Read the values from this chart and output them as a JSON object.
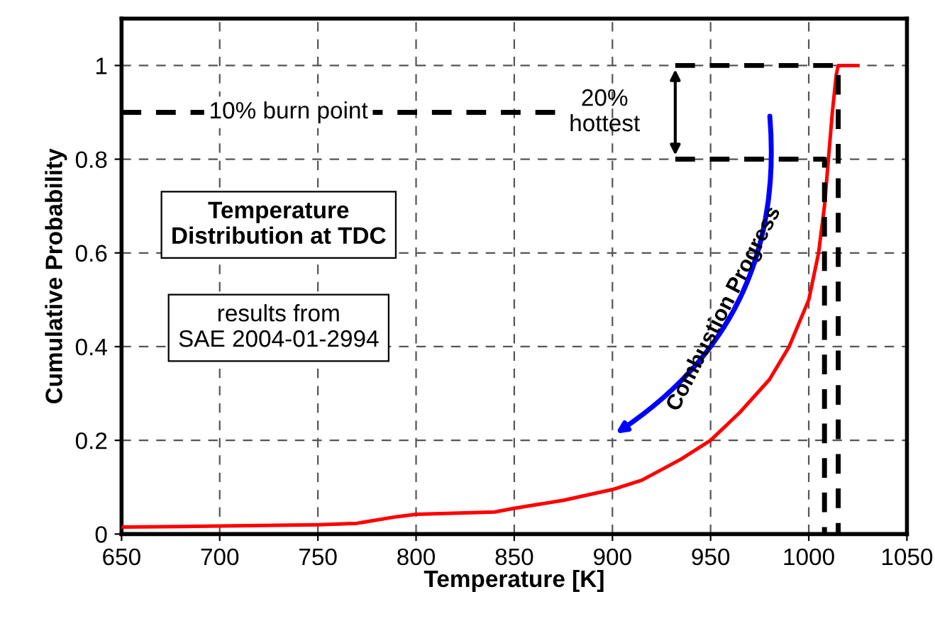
{
  "chart_data": {
    "type": "line",
    "title": "Temperature\nDistribution at TDC",
    "xlabel": "Temperature [K]",
    "ylabel": "Cumulative Probability",
    "series": [
      {
        "color": "#ff0000",
        "line_style": "solid",
        "x": [
          650,
          700,
          750,
          770,
          790,
          800,
          840,
          850,
          875,
          900,
          915,
          935,
          950,
          965,
          980,
          990,
          1000,
          1005,
          1008,
          1010,
          1012,
          1014,
          1015,
          1025
        ],
        "values": [
          0.015,
          0.017,
          0.02,
          0.023,
          0.037,
          0.042,
          0.047,
          0.055,
          0.072,
          0.095,
          0.115,
          0.16,
          0.2,
          0.26,
          0.33,
          0.4,
          0.5,
          0.6,
          0.7,
          0.8,
          0.9,
          0.98,
          1.0,
          1.0
        ]
      },
      {
        "color": "#000000",
        "line_style": "dashed",
        "x": [
          932,
          1008,
          1008
        ],
        "values": [
          0.8,
          0.8,
          0
        ]
      },
      {
        "color": "#000000",
        "line_style": "dashed",
        "x": [
          932,
          1015,
          1015
        ],
        "values": [
          1.0,
          1.0,
          0
        ]
      },
      {
        "color": "#000000",
        "line_style": "dashed",
        "x": [
          650,
          872
        ],
        "values": [
          0.9,
          0.9
        ]
      }
    ],
    "annotations": [
      {
        "text": "10% burn point",
        "x": 735,
        "y": 0.9
      },
      "20%\nhottest",
      "Combustion Progress",
      "results from\nSAE 2004-01-2994"
    ],
    "xlim": [
      650,
      1050
    ],
    "xticks": [
      650,
      700,
      750,
      800,
      850,
      900,
      950,
      1000,
      1050
    ],
    "ylim": [
      0,
      1.1
    ],
    "yticks": [
      0,
      0.2,
      0.4,
      0.6,
      0.8,
      1
    ],
    "grid": true
  }
}
